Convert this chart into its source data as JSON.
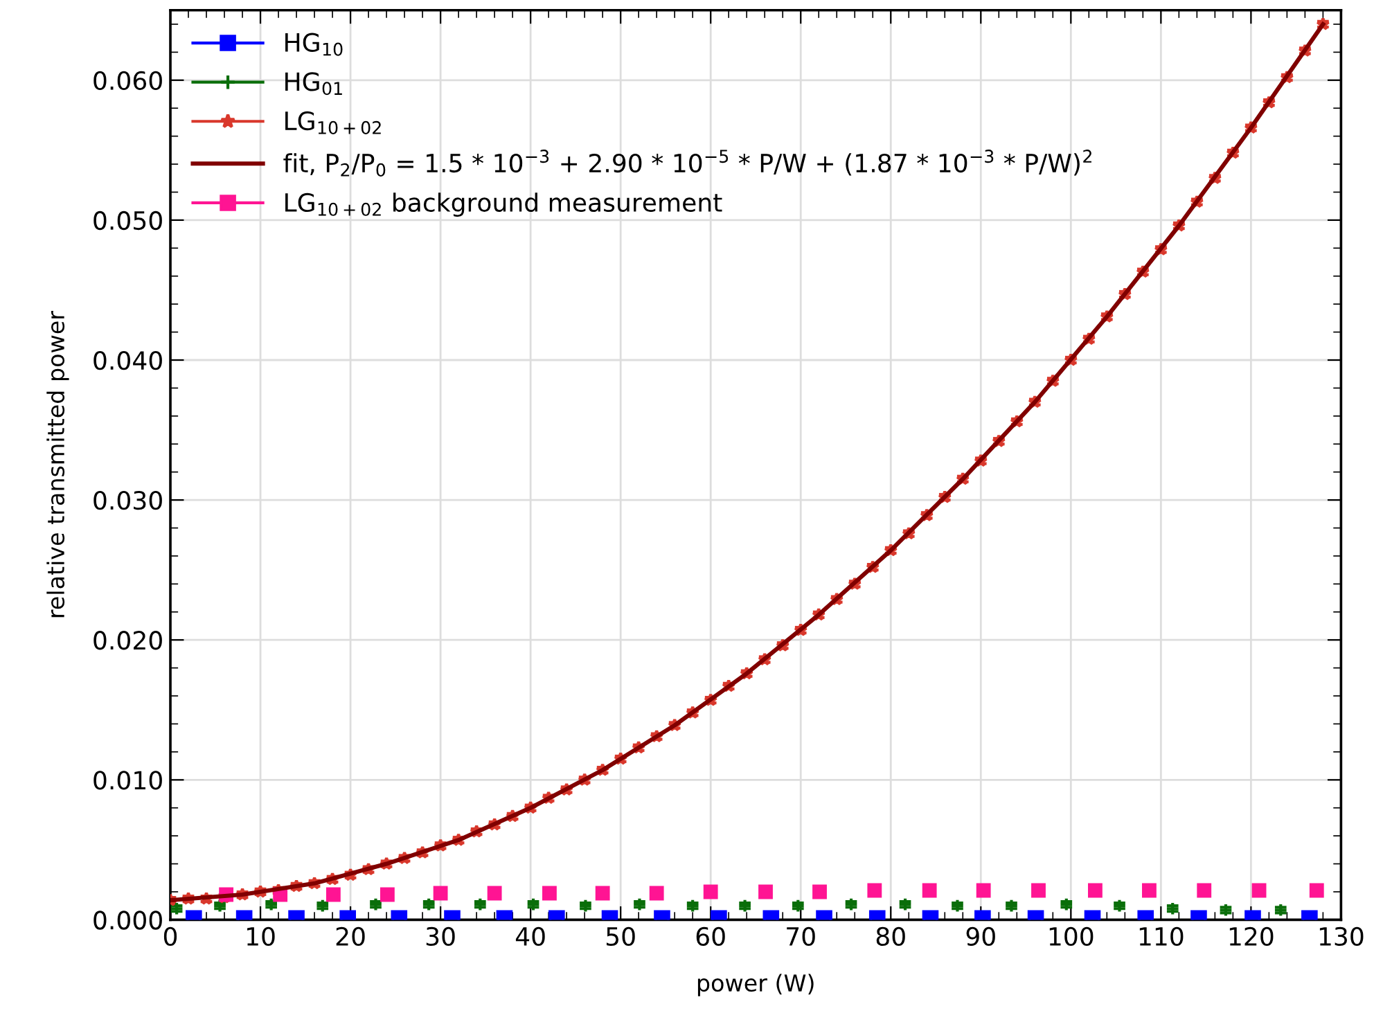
{
  "chart_data": {
    "type": "scatter",
    "xlabel": "power (W)",
    "ylabel": "relative transmitted power",
    "xlim": [
      0,
      130
    ],
    "ylim": [
      0,
      0.065
    ],
    "xticks": [
      0,
      10,
      20,
      30,
      40,
      50,
      60,
      70,
      80,
      90,
      100,
      110,
      120,
      130
    ],
    "yticks": [
      {
        "value": 0,
        "label": "0.000"
      },
      {
        "value": 0.01,
        "label": "0.010"
      },
      {
        "value": 0.02,
        "label": "0.020"
      },
      {
        "value": 0.03,
        "label": "0.030"
      },
      {
        "value": 0.04,
        "label": "0.040"
      },
      {
        "value": 0.05,
        "label": "0.050"
      },
      {
        "value": 0.06,
        "label": "0.060"
      }
    ],
    "grid": true,
    "legend": "top left",
    "series": [
      {
        "name": "HG$_{10}$",
        "color": "#0000ff",
        "marker": "square",
        "x": [
          2.6,
          8.2,
          14.0,
          19.7,
          25.4,
          31.3,
          37.1,
          42.9,
          48.8,
          54.6,
          60.9,
          66.7,
          72.6,
          78.5,
          84.4,
          90.2,
          96.1,
          102.4,
          108.3,
          114.2,
          120.2,
          126.5
        ],
        "values": [
          0.0001,
          0.0001,
          0.0001,
          0.0001,
          0.0001,
          0.0001,
          0.0001,
          0.0001,
          0.0001,
          0.0001,
          0.0001,
          0.0001,
          0.0001,
          0.0001,
          0.0001,
          0.0001,
          0.0001,
          0.0001,
          0.0001,
          0.0001,
          0.0001,
          0.0001
        ]
      },
      {
        "name": "HG$_{01}$",
        "color": "#0a6e0a",
        "marker": "cross",
        "x": [
          0.7,
          5.5,
          11.2,
          16.9,
          22.8,
          28.7,
          34.4,
          40.3,
          46.1,
          52.1,
          58.0,
          63.8,
          69.7,
          75.6,
          81.6,
          87.4,
          93.4,
          99.5,
          105.4,
          111.3,
          117.2,
          123.3
        ],
        "values": [
          0.0008,
          0.001,
          0.0011,
          0.001,
          0.0011,
          0.0011,
          0.0011,
          0.0011,
          0.001,
          0.0011,
          0.001,
          0.001,
          0.001,
          0.0011,
          0.0011,
          0.001,
          0.001,
          0.0011,
          0.001,
          0.0008,
          0.0007,
          0.0007
        ],
        "errors": [
          0.0002,
          0.0002,
          0.0002,
          0.0002,
          0.0002,
          0.0002,
          0.0002,
          0.0002,
          0.0002,
          0.0002,
          0.0002,
          0.0002,
          0.0002,
          0.0002,
          0.0002,
          0.0002,
          0.0002,
          0.0002,
          0.0002,
          0.0002,
          0.0002,
          0.0002
        ]
      },
      {
        "name": "LG$_{10+02}$",
        "color": "#d9382c",
        "marker": "star",
        "x": [
          0,
          2,
          4,
          6,
          8,
          10,
          12,
          14,
          16,
          18,
          20,
          22,
          24,
          26,
          28,
          30,
          32,
          34,
          36,
          38,
          40,
          42,
          44,
          46,
          48,
          50,
          52,
          54,
          56,
          58,
          60,
          62,
          64,
          66,
          68,
          70,
          72,
          74,
          76,
          78,
          80,
          82,
          84,
          86,
          88,
          90,
          92,
          94,
          96,
          98,
          100,
          102,
          104,
          106,
          108,
          110,
          112,
          114,
          116,
          118,
          120,
          122,
          124,
          126,
          128
        ],
        "values": [
          0.0014,
          0.0015,
          0.0015,
          0.0016,
          0.0018,
          0.002,
          0.0021,
          0.0024,
          0.0026,
          0.0029,
          0.0032,
          0.0036,
          0.004,
          0.0044,
          0.0048,
          0.0053,
          0.0057,
          0.0063,
          0.0068,
          0.0074,
          0.008,
          0.0087,
          0.0093,
          0.01,
          0.0107,
          0.0115,
          0.0123,
          0.0131,
          0.0139,
          0.0148,
          0.0157,
          0.0167,
          0.0176,
          0.0186,
          0.0196,
          0.0207,
          0.0218,
          0.0229,
          0.024,
          0.0252,
          0.0264,
          0.0276,
          0.0289,
          0.0302,
          0.0315,
          0.0328,
          0.0342,
          0.0356,
          0.037,
          0.0385,
          0.04,
          0.0415,
          0.0431,
          0.0447,
          0.0463,
          0.0479,
          0.0496,
          0.0513,
          0.053,
          0.0548,
          0.0566,
          0.0584,
          0.0602,
          0.0621,
          0.064
        ],
        "errors": [
          0.0002,
          0.0002,
          0.0002,
          0.0002,
          0.0002,
          0.0002,
          0.0002,
          0.0002,
          0.0002,
          0.0002,
          0.0002,
          0.0002,
          0.0002,
          0.0002,
          0.0002,
          0.0002,
          0.0002,
          0.0002,
          0.0002,
          0.0002,
          0.0002,
          0.0002,
          0.0002,
          0.0002,
          0.0002,
          0.0002,
          0.0002,
          0.0002,
          0.0002,
          0.0002,
          0.0002,
          0.0002,
          0.0002,
          0.0002,
          0.0002,
          0.0002,
          0.0002,
          0.0002,
          0.0002,
          0.0002,
          0.0002,
          0.0002,
          0.0002,
          0.0002,
          0.0002,
          0.0002,
          0.0002,
          0.0002,
          0.0002,
          0.0002,
          0.0002,
          0.0002,
          0.0002,
          0.0002,
          0.0002,
          0.0002,
          0.0002,
          0.0002,
          0.0002,
          0.0002,
          0.0002,
          0.0002,
          0.0002,
          0.0002,
          0.0002
        ]
      },
      {
        "name": "fit, P$_{2}$/P$_{0}$ = 1.5 * 10$^{−3}$ + 2.90 * 10$^{−5}$ * P/W + (1.87 * 10$^{−3}$ * P/W)$^{2}$",
        "type": "line",
        "color": "#800000",
        "marker": "none",
        "x": [
          0,
          8,
          16,
          24,
          32,
          40,
          48,
          56,
          64,
          72,
          80,
          88,
          96,
          104,
          112,
          120,
          128
        ],
        "values": [
          0.0014,
          0.0018,
          0.0026,
          0.004,
          0.0057,
          0.008,
          0.0107,
          0.0139,
          0.0176,
          0.0218,
          0.0264,
          0.0315,
          0.037,
          0.0431,
          0.0496,
          0.0566,
          0.064
        ]
      },
      {
        "name": "LG$_{10+02}$ background measurement",
        "color": "#ff1493",
        "marker": "square",
        "x": [
          6.2,
          12.2,
          18.1,
          24.1,
          30.0,
          36.0,
          42.1,
          48.0,
          54.0,
          60.0,
          66.1,
          72.1,
          78.2,
          84.3,
          90.3,
          96.4,
          102.7,
          108.7,
          114.8,
          120.9,
          127.3
        ],
        "values": [
          0.0018,
          0.0018,
          0.0018,
          0.0018,
          0.0019,
          0.0019,
          0.0019,
          0.0019,
          0.0019,
          0.002,
          0.002,
          0.002,
          0.0021,
          0.0021,
          0.0021,
          0.0021,
          0.0021,
          0.0021,
          0.0021,
          0.0021,
          0.0021
        ],
        "errors": [
          0.0002,
          0.0002,
          0.0002,
          0.0002,
          0.0002,
          0.0002,
          0.0002,
          0.0002,
          0.0002,
          0.0002,
          0.0002,
          0.0002,
          0.0002,
          0.0002,
          0.0002,
          0.0002,
          0.0002,
          0.0002,
          0.0002,
          0.0002,
          0.0002
        ]
      }
    ]
  }
}
